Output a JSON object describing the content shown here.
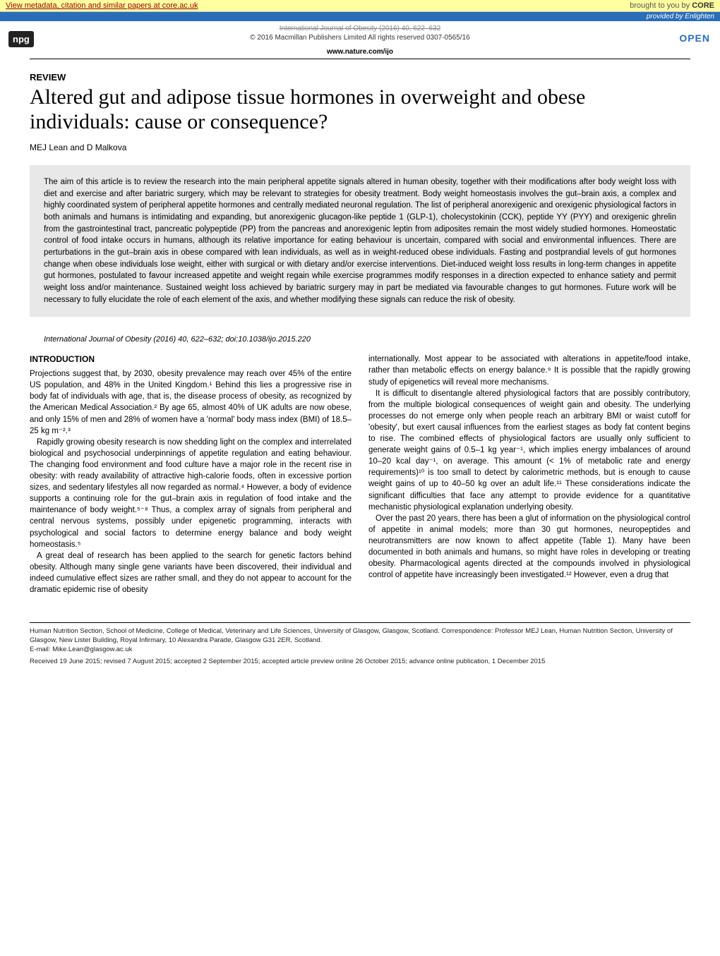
{
  "core_banner": {
    "left": "View metadata, citation and similar papers at core.ac.uk",
    "right_prefix": "brought to you by ",
    "right_logo": "CORE"
  },
  "enlighten": "provided by Enlighten",
  "header": {
    "journal_meta": "International Journal of Obesity (2016) 40, 622–632",
    "publisher": "© 2016 Macmillan Publishers Limited  All rights reserved 0307-0565/16",
    "url": "www.nature.com/ijo",
    "open_label": "OPEN",
    "npg": "npg"
  },
  "article": {
    "review_label": "REVIEW",
    "title": "Altered gut and adipose tissue hormones in overweight and obese individuals: cause or consequence?",
    "authors": "MEJ Lean and D Malkova",
    "abstract": "The aim of this article is to review the research into the main peripheral appetite signals altered in human obesity, together with their modifications after body weight loss with diet and exercise and after bariatric surgery, which may be relevant to strategies for obesity treatment. Body weight homeostasis involves the gut–brain axis, a complex and highly coordinated system of peripheral appetite hormones and centrally mediated neuronal regulation. The list of peripheral anorexigenic and orexigenic physiological factors in both animals and humans is intimidating and expanding, but anorexigenic glucagon-like peptide 1 (GLP-1), cholecystokinin (CCK), peptide YY (PYY) and orexigenic ghrelin from the gastrointestinal tract, pancreatic polypeptide (PP) from the pancreas and anorexigenic leptin from adiposites remain the most widely studied hormones. Homeostatic control of food intake occurs in humans, although its relative importance for eating behaviour is uncertain, compared with social and environmental influences. There are perturbations in the gut–brain axis in obese compared with lean individuals, as well as in weight-reduced obese individuals. Fasting and postprandial levels of gut hormones change when obese individuals lose weight, either with surgical or with dietary and/or exercise interventions. Diet-induced weight loss results in long-term changes in appetite gut hormones, postulated to favour increased appetite and weight regain while exercise programmes modify responses in a direction expected to enhance satiety and permit weight loss and/or maintenance. Sustained weight loss achieved by bariatric surgery may in part be mediated via favourable changes to gut hormones. Future work will be necessary to fully elucidate the role of each element of the axis, and whether modifying these signals can reduce the risk of obesity.",
    "citation": "International Journal of Obesity (2016) 40, 622–632; doi:10.1038/ijo.2015.220"
  },
  "body": {
    "intro_head": "INTRODUCTION",
    "col1_p1": "Projections suggest that, by 2030, obesity prevalence may reach over 45% of the entire US population, and 48% in the United Kingdom.¹ Behind this lies a progressive rise in body fat of individuals with age, that is, the disease process of obesity, as recognized by the American Medical Association.² By age 65, almost 40% of UK adults are now obese, and only 15% of men and 28% of women have a 'normal' body mass index (BMI) of 18.5–25 kg m⁻².³",
    "col1_p2": "Rapidly growing obesity research is now shedding light on the complex and interrelated biological and psychosocial underpinnings of appetite regulation and eating behaviour. The changing food environment and food culture have a major role in the recent rise in obesity: with ready availability of attractive high-calorie foods, often in excessive portion sizes, and sedentary lifestyles all now regarded as normal.⁴ However, a body of evidence supports a continuing role for the gut–brain axis in regulation of food intake and the maintenance of body weight.⁵⁻⁸ Thus, a complex array of signals from peripheral and central nervous systems, possibly under epigenetic programming, interacts with psychological and social factors to determine energy balance and body weight homeostasis.⁵",
    "col1_p3": "A great deal of research has been applied to the search for genetic factors behind obesity. Although many single gene variants have been discovered, their individual and indeed cumulative effect sizes are rather small, and they do not appear to account for the dramatic epidemic rise of obesity",
    "col2_p1": "internationally. Most appear to be associated with alterations in appetite/food intake, rather than metabolic effects on energy balance.⁹ It is possible that the rapidly growing study of epigenetics will reveal more mechanisms.",
    "col2_p2": "It is difficult to disentangle altered physiological factors that are possibly contributory, from the multiple biological consequences of weight gain and obesity. The underlying processes do not emerge only when people reach an arbitrary BMI or waist cutoff for 'obesity', but exert causal influences from the earliest stages as body fat content begins to rise. The combined effects of physiological factors are usually only sufficient to generate weight gains of 0.5–1 kg year⁻¹, which implies energy imbalances of around 10–20 kcal day⁻¹, on average. This amount (< 1% of metabolic rate and energy requirements)¹⁰ is too small to detect by calorimetric methods, but is enough to cause weight gains of up to 40–50 kg over an adult life.¹¹ These considerations indicate the significant difficulties that face any attempt to provide evidence for a quantitative mechanistic physiological explanation underlying obesity.",
    "col2_p3": "Over the past 20 years, there has been a glut of information on the physiological control of appetite in animal models; more than 30 gut hormones, neuropeptides and neurotransmitters are now known to affect appetite (Table 1). Many have been documented in both animals and humans, so might have roles in developing or treating obesity. Pharmacological agents directed at the compounds involved in physiological control of appetite have increasingly been investigated.¹² However, even a drug that"
  },
  "footer": {
    "affiliation": "Human Nutrition Section, School of Medicine, College of Medical, Veterinary and Life Sciences, University of Glasgow, Glasgow, Scotland. Correspondence: Professor MEJ Lean, Human Nutrition Section, University of Glasgow, New Lister Building, Royal Infirmary, 10 Alexandra Parade, Glasgow G31 2ER, Scotland.",
    "email": "E-mail: Mike.Lean@glasgow.ac.uk",
    "received": "Received 19 June 2015; revised 7 August 2015; accepted 2 September 2015; accepted article preview online 26 October 2015; advance online publication, 1 December 2015"
  }
}
